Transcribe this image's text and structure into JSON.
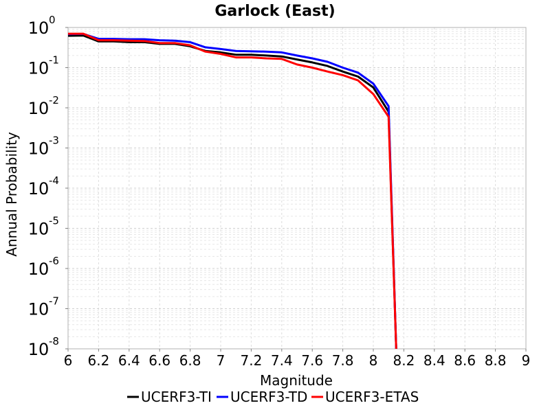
{
  "chart_data": {
    "type": "line",
    "title": "Garlock (East)",
    "xlabel": "Magnitude",
    "ylabel": "Annual Probability",
    "xlim": [
      6,
      9
    ],
    "ylim": [
      1e-08,
      1
    ],
    "y_scale": "log",
    "grid": true,
    "legend_position": "bottom",
    "x_ticks": [
      "6",
      "6.2",
      "6.4",
      "6.6",
      "6.8",
      "7",
      "7.2",
      "7.4",
      "7.6",
      "7.8",
      "8",
      "8.2",
      "8.4",
      "8.6",
      "8.8",
      "9"
    ],
    "y_ticks": [
      {
        "base": "10",
        "exp": "0"
      },
      {
        "base": "10",
        "exp": "-1"
      },
      {
        "base": "10",
        "exp": "-2"
      },
      {
        "base": "10",
        "exp": "-3"
      },
      {
        "base": "10",
        "exp": "-4"
      },
      {
        "base": "10",
        "exp": "-5"
      },
      {
        "base": "10",
        "exp": "-6"
      },
      {
        "base": "10",
        "exp": "-7"
      },
      {
        "base": "10",
        "exp": "-8"
      }
    ],
    "x": [
      6.0,
      6.1,
      6.2,
      6.3,
      6.4,
      6.5,
      6.6,
      6.7,
      6.8,
      6.9,
      7.0,
      7.1,
      7.2,
      7.3,
      7.4,
      7.5,
      7.6,
      7.7,
      7.8,
      7.9,
      8.0,
      8.1,
      8.15
    ],
    "series": [
      {
        "name": "UCERF3-TI",
        "color": "#000000",
        "values": [
          0.62,
          0.63,
          0.45,
          0.45,
          0.43,
          0.43,
          0.39,
          0.39,
          0.34,
          0.26,
          0.24,
          0.21,
          0.21,
          0.2,
          0.19,
          0.16,
          0.135,
          0.11,
          0.08,
          0.06,
          0.032,
          0.008,
          1e-08
        ]
      },
      {
        "name": "UCERF3-TD",
        "color": "#0000ff",
        "values": [
          0.68,
          0.69,
          0.52,
          0.52,
          0.51,
          0.51,
          0.48,
          0.47,
          0.43,
          0.32,
          0.29,
          0.26,
          0.255,
          0.25,
          0.24,
          0.2,
          0.17,
          0.14,
          0.1,
          0.075,
          0.04,
          0.011,
          1e-08
        ]
      },
      {
        "name": "UCERF3-ETAS",
        "color": "#ff0000",
        "values": [
          0.7,
          0.7,
          0.48,
          0.48,
          0.47,
          0.46,
          0.41,
          0.41,
          0.36,
          0.25,
          0.22,
          0.18,
          0.18,
          0.17,
          0.165,
          0.12,
          0.1,
          0.08,
          0.065,
          0.048,
          0.022,
          0.006,
          1e-08
        ]
      }
    ]
  }
}
